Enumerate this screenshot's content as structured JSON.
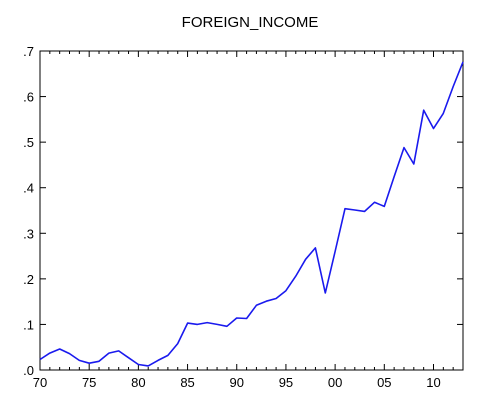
{
  "chart_data": {
    "type": "line",
    "title": "FOREIGN_INCOME",
    "xlabel": "",
    "ylabel": "",
    "xlim": [
      1970,
      2013
    ],
    "ylim": [
      0,
      0.7
    ],
    "x_ticks": [
      1970,
      1975,
      1980,
      1985,
      1990,
      1995,
      2000,
      2005,
      2010
    ],
    "x_tick_labels": [
      "70",
      "75",
      "80",
      "85",
      "90",
      "95",
      "00",
      "05",
      "10"
    ],
    "y_ticks": [
      0,
      0.1,
      0.2,
      0.3,
      0.4,
      0.5,
      0.6,
      0.7
    ],
    "y_tick_labels": [
      ".0",
      ".1",
      ".2",
      ".3",
      ".4",
      ".5",
      ".6",
      ".7"
    ],
    "grid": false,
    "colors": {
      "line": "#1a1aee",
      "axis": "#000000"
    },
    "series": [
      {
        "x": [
          1970,
          1971,
          1972,
          1973,
          1974,
          1975,
          1976,
          1977,
          1978,
          1979,
          1980,
          1981,
          1982,
          1983,
          1984,
          1985,
          1986,
          1987,
          1988,
          1989,
          1990,
          1991,
          1992,
          1993,
          1994,
          1995,
          1996,
          1997,
          1998,
          1999,
          2000,
          2001,
          2002,
          2003,
          2004,
          2005,
          2006,
          2007,
          2008,
          2009,
          2010,
          2011,
          2012,
          2013
        ],
        "values": [
          0.023,
          0.037,
          0.046,
          0.036,
          0.021,
          0.015,
          0.019,
          0.037,
          0.042,
          0.027,
          0.012,
          0.009,
          0.021,
          0.032,
          0.058,
          0.103,
          0.1,
          0.104,
          0.1,
          0.096,
          0.114,
          0.113,
          0.142,
          0.151,
          0.157,
          0.174,
          0.206,
          0.243,
          0.268,
          0.169,
          0.26,
          0.354,
          0.351,
          0.348,
          0.368,
          0.359,
          0.424,
          0.488,
          0.452,
          0.57,
          0.53,
          0.563,
          0.622,
          0.676
        ]
      }
    ]
  }
}
